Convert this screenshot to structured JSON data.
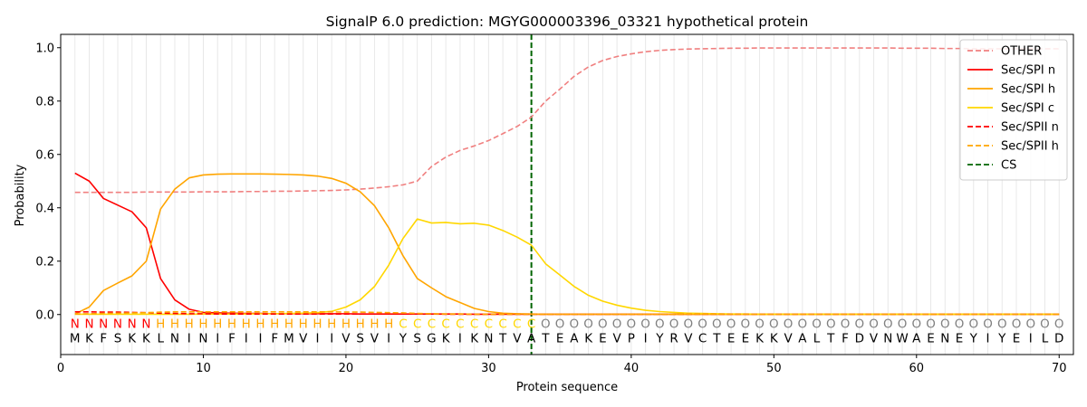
{
  "chart_data": {
    "type": "line",
    "title": "SignalP 6.0 prediction: MGYG000003396_03321 hypothetical protein",
    "xlabel": "Protein sequence",
    "ylabel": "Probability",
    "xlim": [
      0,
      71
    ],
    "ylim": [
      -0.15,
      1.05
    ],
    "xticks": [
      0,
      10,
      20,
      30,
      40,
      50,
      60,
      70
    ],
    "yticks": [
      0.0,
      0.2,
      0.4,
      0.6,
      0.8,
      1.0
    ],
    "xtick_labels": [
      "0",
      "10",
      "20",
      "30",
      "40",
      "50",
      "60",
      "70"
    ],
    "ytick_labels": [
      "0.0",
      "0.2",
      "0.4",
      "0.6",
      "0.8",
      "1.0"
    ],
    "legend_position": "top-right",
    "sequence": [
      "M",
      "K",
      "F",
      "S",
      "K",
      "K",
      "L",
      "N",
      "I",
      "N",
      "I",
      "F",
      "I",
      "I",
      "F",
      "M",
      "V",
      "I",
      "I",
      "V",
      "S",
      "V",
      "I",
      "Y",
      "S",
      "G",
      "K",
      "I",
      "K",
      "N",
      "T",
      "V",
      "A",
      "T",
      "E",
      "A",
      "K",
      "E",
      "V",
      "P",
      "I",
      "Y",
      "R",
      "V",
      "C",
      "T",
      "E",
      "E",
      "K",
      "K",
      "V",
      "A",
      "L",
      "T",
      "F",
      "D",
      "V",
      "N",
      "W",
      "A",
      "E",
      "N",
      "E",
      "Y",
      "I",
      "Y",
      "E",
      "I",
      "L",
      "D"
    ],
    "labels": [
      "N",
      "N",
      "N",
      "N",
      "N",
      "N",
      "H",
      "H",
      "H",
      "H",
      "H",
      "H",
      "H",
      "H",
      "H",
      "H",
      "H",
      "H",
      "H",
      "H",
      "H",
      "H",
      "H",
      "C",
      "C",
      "C",
      "C",
      "C",
      "C",
      "C",
      "C",
      "C",
      "C",
      "O",
      "O",
      "O",
      "O",
      "O",
      "O",
      "O",
      "O",
      "O",
      "O",
      "O",
      "O",
      "O",
      "O",
      "O",
      "O",
      "O",
      "O",
      "O",
      "O",
      "O",
      "O",
      "O",
      "O",
      "O",
      "O",
      "O",
      "O",
      "O",
      "O",
      "O",
      "O",
      "O",
      "O",
      "O",
      "O",
      "O"
    ],
    "label_colors": {
      "N": "#ff0000",
      "H": "#ffa500",
      "C": "#ffd700",
      "O": "#808080"
    },
    "cs_position": 33,
    "series": [
      {
        "name": "OTHER",
        "color": "#f08080",
        "dash": "dashed",
        "values": [
          0.458,
          0.458,
          0.458,
          0.458,
          0.458,
          0.459,
          0.459,
          0.459,
          0.459,
          0.46,
          0.46,
          0.46,
          0.461,
          0.461,
          0.462,
          0.462,
          0.463,
          0.464,
          0.465,
          0.467,
          0.47,
          0.474,
          0.479,
          0.486,
          0.5,
          0.555,
          0.59,
          0.615,
          0.632,
          0.652,
          0.678,
          0.705,
          0.74,
          0.8,
          0.845,
          0.893,
          0.928,
          0.952,
          0.967,
          0.977,
          0.985,
          0.99,
          0.993,
          0.995,
          0.996,
          0.997,
          0.998,
          0.998,
          0.999,
          0.999,
          0.999,
          0.999,
          0.999,
          0.999,
          0.999,
          0.999,
          0.999,
          0.999,
          0.998,
          0.998,
          0.998,
          0.997,
          0.997,
          0.996,
          0.996,
          0.996,
          0.996,
          0.996,
          0.996,
          0.996
        ]
      },
      {
        "name": "Sec/SPI n",
        "color": "#ff0000",
        "dash": "solid",
        "values": [
          0.53,
          0.5,
          0.435,
          0.41,
          0.385,
          0.325,
          0.135,
          0.055,
          0.02,
          0.008,
          0.006,
          0.005,
          0.004,
          0.004,
          0.003,
          0.003,
          0.003,
          0.003,
          0.003,
          0.003,
          0.002,
          0.002,
          0.002,
          0.002,
          0.002,
          0.002,
          0.002,
          0.002,
          0.001,
          0.001,
          0.001,
          0.001,
          0.001,
          0.001,
          0.001,
          0.001,
          0.001,
          0.001,
          0.001,
          0.001,
          0.001,
          0.001,
          0.001,
          0.001,
          0.001,
          0.001,
          0.001,
          0.001,
          0.001,
          0.001,
          0.001,
          0.001,
          0.001,
          0.001,
          0.001,
          0.001,
          0.001,
          0.001,
          0.001,
          0.001,
          0.001,
          0.001,
          0.001,
          0.001,
          0.001,
          0.001,
          0.001,
          0.001,
          0.001,
          0.001
        ]
      },
      {
        "name": "Sec/SPI h",
        "color": "#ffa500",
        "dash": "solid",
        "values": [
          0.002,
          0.028,
          0.09,
          0.118,
          0.145,
          0.2,
          0.395,
          0.47,
          0.512,
          0.523,
          0.526,
          0.527,
          0.527,
          0.527,
          0.526,
          0.525,
          0.523,
          0.519,
          0.51,
          0.492,
          0.46,
          0.408,
          0.325,
          0.22,
          0.135,
          0.1,
          0.067,
          0.045,
          0.023,
          0.011,
          0.005,
          0.003,
          0.002,
          0.001,
          0.001,
          0.001,
          0.001,
          0.001,
          0.001,
          0.001,
          0.001,
          0.001,
          0.001,
          0.001,
          0.001,
          0.001,
          0.001,
          0.001,
          0.001,
          0.001,
          0.001,
          0.001,
          0.001,
          0.001,
          0.001,
          0.001,
          0.001,
          0.001,
          0.001,
          0.001,
          0.001,
          0.001,
          0.001,
          0.001,
          0.001,
          0.001,
          0.001,
          0.001,
          0.001,
          0.001
        ]
      },
      {
        "name": "Sec/SPI c",
        "color": "#ffd700",
        "dash": "solid",
        "values": [
          0.001,
          0.001,
          0.001,
          0.001,
          0.001,
          0.001,
          0.001,
          0.001,
          0.001,
          0.002,
          0.002,
          0.002,
          0.002,
          0.003,
          0.003,
          0.004,
          0.005,
          0.007,
          0.012,
          0.028,
          0.055,
          0.105,
          0.185,
          0.285,
          0.358,
          0.343,
          0.345,
          0.34,
          0.342,
          0.335,
          0.315,
          0.29,
          0.26,
          0.19,
          0.148,
          0.105,
          0.072,
          0.05,
          0.035,
          0.024,
          0.016,
          0.011,
          0.008,
          0.005,
          0.004,
          0.003,
          0.002,
          0.002,
          0.001,
          0.001,
          0.001,
          0.001,
          0.001,
          0.001,
          0.001,
          0.001,
          0.001,
          0.001,
          0.001,
          0.001,
          0.001,
          0.001,
          0.001,
          0.001,
          0.001,
          0.001,
          0.001,
          0.001,
          0.001,
          0.001
        ]
      },
      {
        "name": "Sec/SPII n",
        "color": "#ff0000",
        "dash": "dashed",
        "values": [
          0.01,
          0.01,
          0.009,
          0.009,
          0.008,
          0.007,
          0.005,
          0.004,
          0.003,
          0.003,
          0.002,
          0.002,
          0.002,
          0.002,
          0.002,
          0.002,
          0.002,
          0.002,
          0.002,
          0.002,
          0.002,
          0.002,
          0.002,
          0.002,
          0.002,
          0.002,
          0.001,
          0.001,
          0.001,
          0.001,
          0.001,
          0.001,
          0.001,
          0.001,
          0.001,
          0.001,
          0.001,
          0.001,
          0.001,
          0.001,
          0.001,
          0.001,
          0.001,
          0.001,
          0.001,
          0.001,
          0.001,
          0.001,
          0.001,
          0.001,
          0.001,
          0.001,
          0.001,
          0.001,
          0.001,
          0.001,
          0.001,
          0.001,
          0.001,
          0.001,
          0.001,
          0.001,
          0.001,
          0.001,
          0.001,
          0.001,
          0.001,
          0.001,
          0.001,
          0.001
        ]
      },
      {
        "name": "Sec/SPII h",
        "color": "#ffa500",
        "dash": "dashed",
        "values": [
          0.002,
          0.003,
          0.004,
          0.005,
          0.006,
          0.007,
          0.009,
          0.01,
          0.01,
          0.01,
          0.01,
          0.01,
          0.01,
          0.01,
          0.01,
          0.01,
          0.01,
          0.01,
          0.01,
          0.009,
          0.009,
          0.008,
          0.007,
          0.006,
          0.004,
          0.003,
          0.002,
          0.002,
          0.001,
          0.001,
          0.001,
          0.001,
          0.001,
          0.001,
          0.001,
          0.001,
          0.001,
          0.001,
          0.001,
          0.001,
          0.001,
          0.001,
          0.001,
          0.001,
          0.001,
          0.001,
          0.001,
          0.001,
          0.001,
          0.001,
          0.001,
          0.001,
          0.001,
          0.001,
          0.001,
          0.001,
          0.001,
          0.001,
          0.001,
          0.001,
          0.001,
          0.001,
          0.001,
          0.001,
          0.001,
          0.001,
          0.001,
          0.001,
          0.001,
          0.001
        ]
      }
    ],
    "cs_legend": {
      "name": "CS",
      "color": "#006400",
      "dash": "dashed"
    }
  }
}
